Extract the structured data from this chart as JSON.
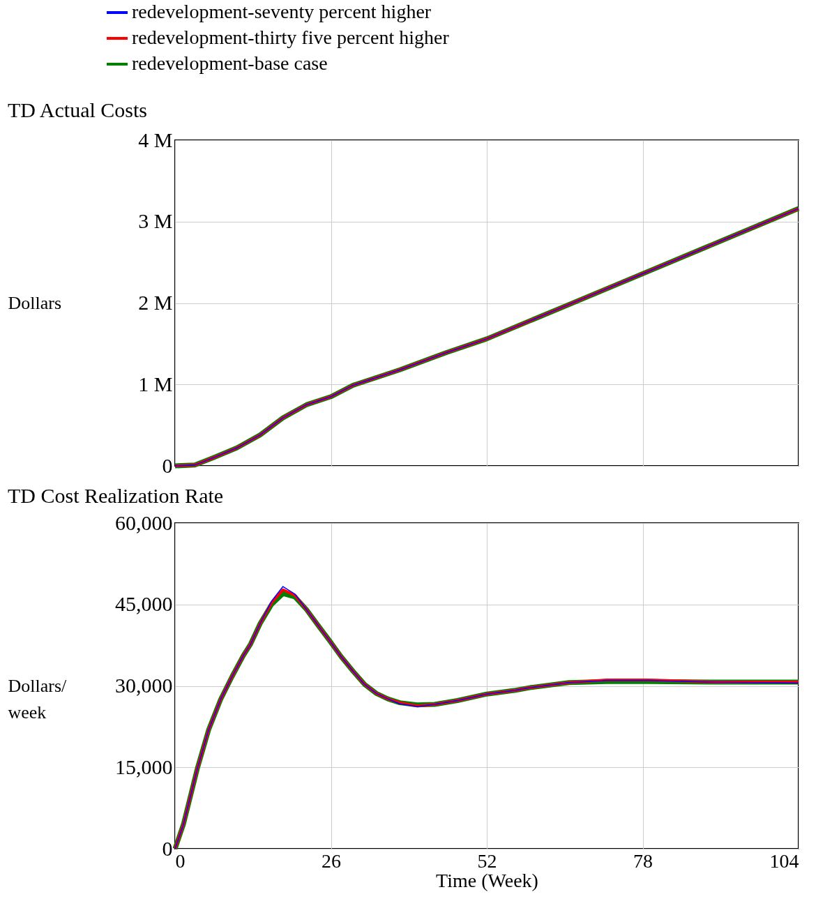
{
  "chart_data": [
    {
      "type": "line",
      "title": "TD Actual Costs",
      "ylabel": "Dollars",
      "legend": "top",
      "grid": true,
      "tick_labels": "y",
      "xlim": [
        0,
        104
      ],
      "xticks": [
        0,
        26,
        52,
        78,
        104
      ],
      "ylim": [
        0,
        4000000
      ],
      "yticks": [
        0,
        {
          "value": 1000000,
          "label": "1 M"
        },
        {
          "value": 2000000,
          "label": "2 M"
        },
        {
          "value": 3000000,
          "label": "3 M"
        },
        {
          "value": 4000000,
          "label": "4 M"
        }
      ],
      "x": [
        0,
        3.3,
        6.4,
        10.3,
        14.2,
        18,
        21.9,
        26,
        29.7,
        37.5,
        45.2,
        52,
        65,
        78,
        91,
        104
      ],
      "series": [
        {
          "name": "redevelopment-seventy percent higher",
          "color": "#0000ff",
          "values": [
            0,
            10000,
            100000,
            220000,
            380000,
            590000,
            750000,
            850000,
            990000,
            1180000,
            1390000,
            1560000,
            1960000,
            2360000,
            2760000,
            3160000
          ]
        },
        {
          "name": "redevelopment-thirty five percent higher",
          "color": "#ff0000",
          "values": [
            0,
            10000,
            100000,
            220000,
            380000,
            590000,
            750000,
            850000,
            990000,
            1180000,
            1390000,
            1560000,
            1960000,
            2360000,
            2760000,
            3160000
          ]
        },
        {
          "name": "redevelopment-base case",
          "color": "#008000",
          "values": [
            0,
            10000,
            100000,
            220000,
            380000,
            590000,
            750000,
            850000,
            990000,
            1180000,
            1390000,
            1560000,
            1960000,
            2360000,
            2760000,
            3160000
          ]
        }
      ]
    },
    {
      "type": "line",
      "title": "TD Cost Realization Rate",
      "ylabel": "Dollars/week",
      "xlabel": "Time (Week)",
      "grid": true,
      "xlim": [
        0,
        104
      ],
      "xticks": [
        0,
        26,
        52,
        78,
        104
      ],
      "ylim": [
        0,
        60000
      ],
      "yticks": [
        0,
        {
          "value": 15000,
          "label": "15,000"
        },
        {
          "value": 30000,
          "label": "30,000"
        },
        {
          "value": 45000,
          "label": "45,000"
        },
        {
          "value": 60000,
          "label": "60,000"
        }
      ],
      "x": [
        0,
        1.4,
        3.7,
        5.6,
        7.6,
        9.5,
        11.4,
        12.6,
        14.2,
        16.1,
        18,
        20,
        21.9,
        23.9,
        25.8,
        27.7,
        29.7,
        31.6,
        33.6,
        35.5,
        37.5,
        40.4,
        43.3,
        47.1,
        52,
        56.8,
        59.3,
        65.7,
        72,
        79,
        90,
        104
      ],
      "series": [
        {
          "color": "#0000ff",
          "values": [
            0,
            4500,
            14700,
            21900,
            27500,
            31700,
            35600,
            37700,
            41500,
            45600,
            48300,
            46900,
            44100,
            41100,
            38300,
            35400,
            32700,
            30300,
            28600,
            27600,
            26700,
            26200,
            26600,
            27300,
            28500,
            29200,
            29700,
            30600,
            31000,
            31000,
            30700,
            30500
          ]
        },
        {
          "color": "#ff0000",
          "values": [
            0,
            4500,
            14700,
            21900,
            27500,
            31700,
            35600,
            37700,
            41500,
            45300,
            47700,
            46700,
            44100,
            41100,
            38300,
            35400,
            32700,
            30300,
            28600,
            27600,
            26900,
            26300,
            26600,
            27300,
            28500,
            29200,
            29700,
            30600,
            31100,
            31100,
            30700,
            30700
          ]
        },
        {
          "color": "#008000",
          "values": [
            0,
            4500,
            14700,
            21900,
            27500,
            31700,
            35600,
            37700,
            41500,
            45000,
            47000,
            46400,
            44100,
            41100,
            38300,
            35400,
            32700,
            30300,
            28600,
            27600,
            26900,
            26500,
            26600,
            27300,
            28500,
            29200,
            29700,
            30600,
            30800,
            30800,
            30700,
            30700
          ]
        }
      ]
    }
  ]
}
